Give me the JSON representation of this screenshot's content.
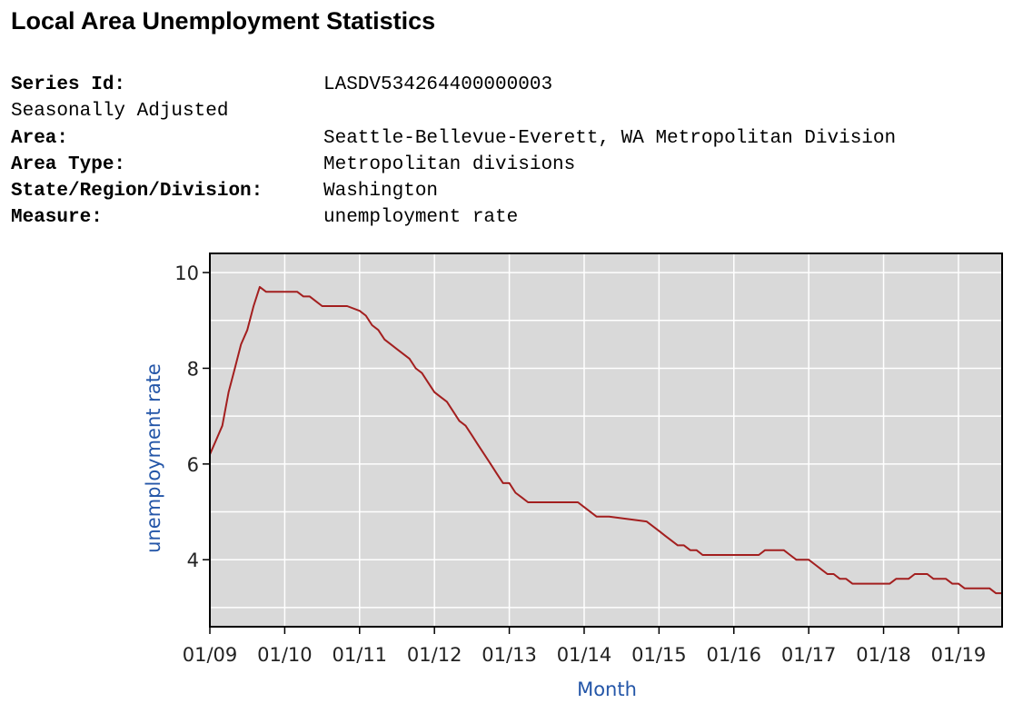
{
  "page": {
    "title": "Local Area Unemployment Statistics",
    "fields": [
      {
        "label": "Series Id:",
        "value": "LASDV534264400000003",
        "bold": true
      },
      {
        "label": "Seasonally Adjusted",
        "value": "",
        "bold": false
      },
      {
        "label": "Area:",
        "value": "Seattle-Bellevue-Everett, WA Metropolitan Division",
        "bold": true
      },
      {
        "label": "Area Type:",
        "value": "Metropolitan divisions",
        "bold": true
      },
      {
        "label": "State/Region/Division:",
        "value": "Washington",
        "bold": true
      },
      {
        "label": "Measure:",
        "value": "unemployment rate",
        "bold": true
      }
    ]
  },
  "colors": {
    "plot_bg": "#d9d9d9",
    "grid": "#ffffff",
    "line": "#a31f1f",
    "axis_label": "#2456a8",
    "frame": "#000000"
  },
  "chart_data": {
    "type": "line",
    "title": "",
    "xlabel": "Month",
    "ylabel": "unemployment rate",
    "x_ticks": [
      "01/09",
      "01/10",
      "01/11",
      "01/12",
      "01/13",
      "01/14",
      "01/15",
      "01/16",
      "01/17",
      "01/18",
      "01/19"
    ],
    "y_ticks": [
      4,
      6,
      8,
      10
    ],
    "ylim": [
      2.6,
      10.4
    ],
    "x_range_months": [
      0,
      127
    ],
    "grid": true,
    "series": [
      {
        "x_months": [
          0,
          1,
          2,
          3,
          4,
          5,
          6,
          7,
          8,
          9,
          10,
          12,
          14,
          15,
          16,
          17,
          18,
          19,
          20,
          22,
          24,
          25,
          26,
          27,
          28,
          29,
          30,
          32,
          33,
          34,
          35,
          36,
          37,
          38,
          39,
          40,
          41,
          42,
          43,
          44,
          45,
          46,
          47,
          48,
          49,
          50,
          51,
          52,
          53,
          54,
          55,
          56,
          57,
          58,
          59,
          60,
          62,
          64,
          70,
          71,
          72,
          73,
          74,
          75,
          76,
          77,
          78,
          79,
          80,
          82,
          84,
          88,
          89,
          90,
          92,
          93,
          94,
          96,
          97,
          98,
          99,
          100,
          101,
          102,
          103,
          104,
          108,
          109,
          110,
          111,
          112,
          113,
          114,
          115,
          116,
          117,
          118,
          119,
          120,
          121,
          122,
          123,
          124,
          125,
          126,
          127
        ],
        "y": [
          6.2,
          6.5,
          6.8,
          7.5,
          8.0,
          8.5,
          8.8,
          9.3,
          9.7,
          9.6,
          9.6,
          9.6,
          9.6,
          9.5,
          9.5,
          9.4,
          9.3,
          9.3,
          9.3,
          9.3,
          9.2,
          9.1,
          8.9,
          8.8,
          8.6,
          8.5,
          8.4,
          8.2,
          8.0,
          7.9,
          7.7,
          7.5,
          7.4,
          7.3,
          7.1,
          6.9,
          6.8,
          6.6,
          6.4,
          6.2,
          6.0,
          5.8,
          5.6,
          5.6,
          5.4,
          5.3,
          5.2,
          5.2,
          5.2,
          5.2,
          5.2,
          5.2,
          5.2,
          5.2,
          5.2,
          5.1,
          4.9,
          4.9,
          4.8,
          4.7,
          4.6,
          4.5,
          4.4,
          4.3,
          4.3,
          4.2,
          4.2,
          4.1,
          4.1,
          4.1,
          4.1,
          4.1,
          4.2,
          4.2,
          4.2,
          4.1,
          4.0,
          4.0,
          3.9,
          3.8,
          3.7,
          3.7,
          3.6,
          3.6,
          3.5,
          3.5,
          3.5,
          3.5,
          3.6,
          3.6,
          3.6,
          3.7,
          3.7,
          3.7,
          3.6,
          3.6,
          3.6,
          3.5,
          3.5,
          3.4,
          3.4,
          3.4,
          3.4,
          3.4,
          3.3,
          3.3
        ]
      }
    ]
  }
}
